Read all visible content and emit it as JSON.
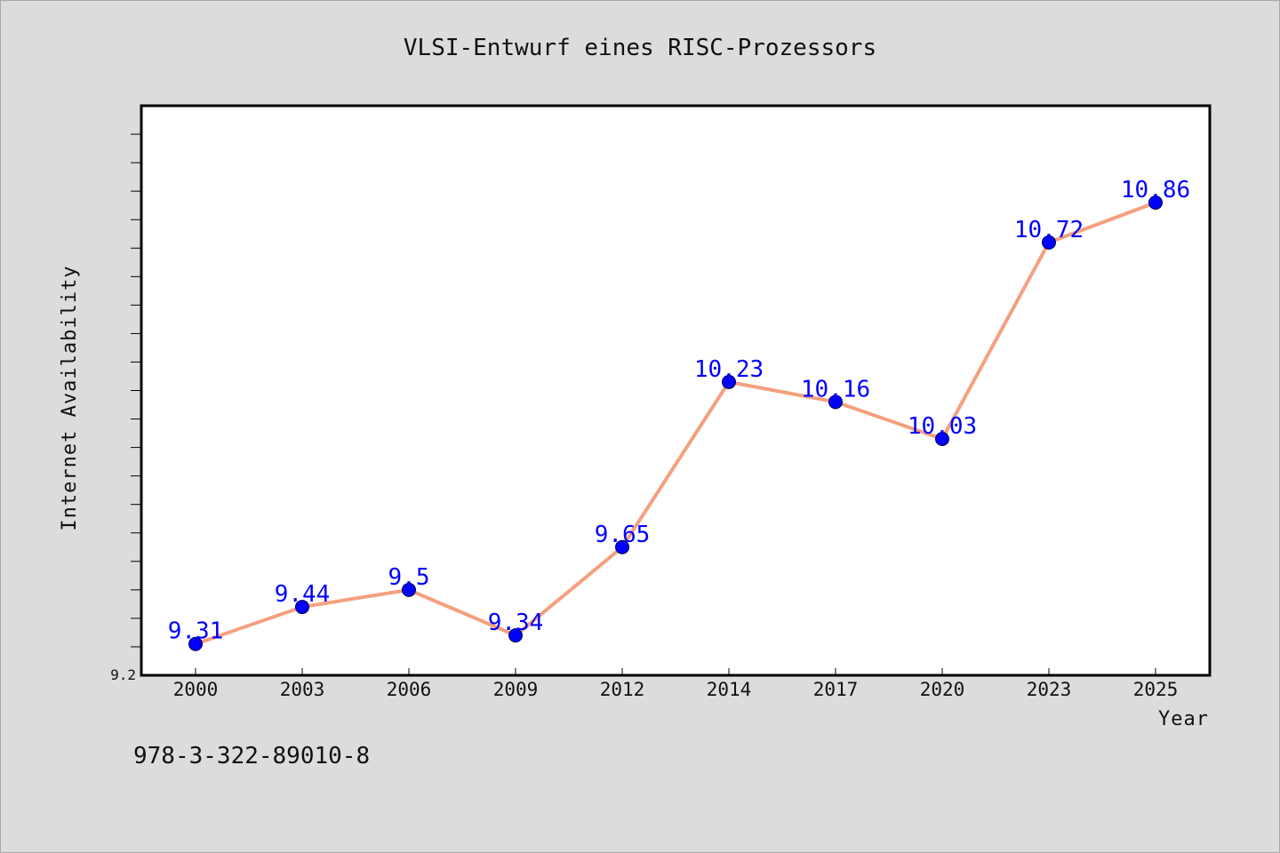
{
  "chart_data": {
    "type": "line",
    "title": "VLSI-Entwurf eines RISC-Prozessors",
    "xlabel": "Year",
    "ylabel": "Internet Availability",
    "categories": [
      "2000",
      "2003",
      "2006",
      "2009",
      "2012",
      "2014",
      "2017",
      "2020",
      "2023",
      "2025"
    ],
    "series": [
      {
        "values": [
          9.31,
          9.44,
          9.5,
          9.34,
          9.65,
          10.23,
          10.16,
          10.03,
          10.72,
          10.86
        ],
        "labels": [
          "9.31",
          "9.44",
          "9.5",
          "9.34",
          "9.65",
          "10.23",
          "10.16",
          "10.03",
          "10.72",
          "10.86"
        ],
        "line_color": "#f4a07f",
        "marker_color": "#0000ff"
      }
    ],
    "ylim": [
      9.2,
      11.2
    ],
    "yticks_labeled": [
      "9.2"
    ],
    "grid": false
  },
  "caption": "978-3-322-89010-8",
  "colors": {
    "background": "#dcdcdc",
    "plot_background": "#ffffff",
    "line": "#f4a07f",
    "marker": "#0000ff",
    "data_label": "#0000ff"
  }
}
